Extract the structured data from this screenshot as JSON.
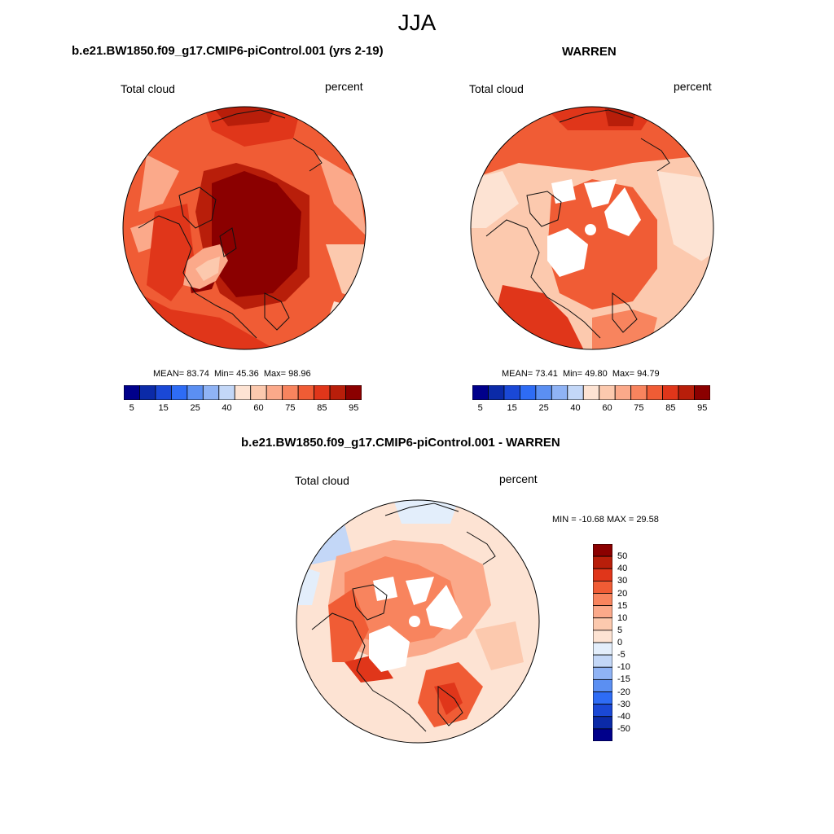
{
  "figure": {
    "title": "JJA",
    "colors": {
      "map_edge": "#000000",
      "land_outline": "#111111",
      "missing": "#ffffff"
    }
  },
  "panels": [
    {
      "id": "p1",
      "title": "b.e21.BW1850.f09_g17.CMIP6-piControl.001 (yrs 2-19)",
      "variable": "Total cloud",
      "units": "percent",
      "stats": {
        "mean": "83.74",
        "min": "45.36",
        "max": "98.96"
      },
      "stats_labels": {
        "mean": "MEAN=",
        "min": "Min=",
        "max": "Max="
      }
    },
    {
      "id": "p2",
      "title": "WARREN",
      "variable": "Total cloud",
      "units": "percent",
      "stats": {
        "mean": "73.41",
        "min": "49.80",
        "max": "94.79"
      },
      "stats_labels": {
        "mean": "MEAN=",
        "min": "Min=",
        "max": "Max="
      }
    },
    {
      "id": "p3",
      "title": "b.e21.BW1850.f09_g17.CMIP6-piControl.001 - WARREN",
      "variable": "Total cloud",
      "units": "percent",
      "stats_text": "MIN = -10.68 MAX =  29.58"
    }
  ],
  "colorbar_abs": {
    "colors": [
      "#00008b",
      "#0b2aa8",
      "#1a48d6",
      "#2e6cf5",
      "#5b8ff2",
      "#8fb3f5",
      "#c3d7f7",
      "#fde3d3",
      "#fcc9ae",
      "#fba98a",
      "#f8845e",
      "#f05c35",
      "#e0361a",
      "#b81e0a",
      "#8b0000"
    ],
    "ticks": [
      "5",
      "15",
      "25",
      "40",
      "60",
      "75",
      "85",
      "95"
    ]
  },
  "colorbar_diff": {
    "colors": [
      "#00008b",
      "#0b2aa8",
      "#1a48d6",
      "#2e6cf5",
      "#5b8ff2",
      "#8fb3f5",
      "#c3d7f7",
      "#e3eefb",
      "#fde3d3",
      "#fcc9ae",
      "#fba98a",
      "#f8845e",
      "#f05c35",
      "#e0361a",
      "#b81e0a",
      "#8b0000"
    ],
    "ticks": [
      "50",
      "40",
      "30",
      "20",
      "15",
      "10",
      "5",
      "0",
      "-5",
      "-10",
      "-15",
      "-20",
      "-30",
      "-40",
      "-50"
    ]
  }
}
